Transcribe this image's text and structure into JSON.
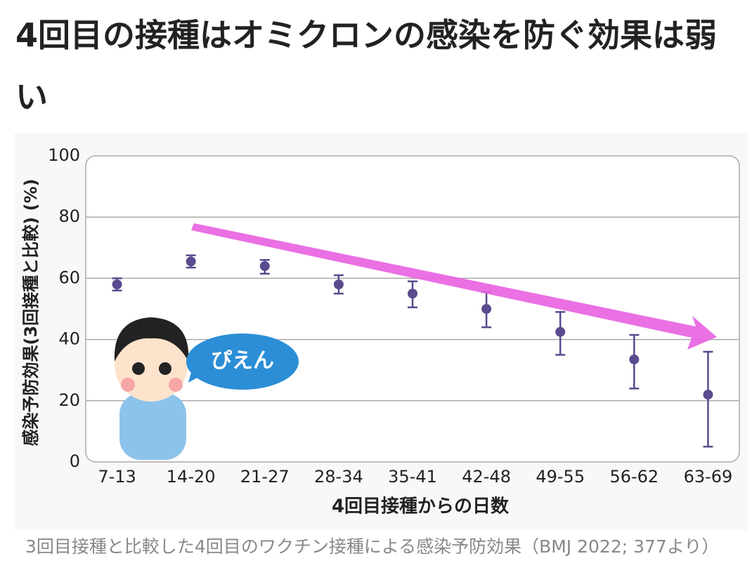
{
  "header": {
    "title": "4回目の接種はオミクロンの感染を防ぐ効果は弱い"
  },
  "chart_data": {
    "type": "errorbar",
    "y_label": "感染予防効果(3回接種と比較) (%)",
    "x_label": "4回目接種からの日数",
    "categories": [
      "7-13",
      "14-20",
      "21-27",
      "28-34",
      "35-41",
      "42-48",
      "49-55",
      "56-62",
      "63-69"
    ],
    "values": [
      58,
      65.5,
      64,
      58,
      55,
      50,
      42.5,
      33.5,
      22
    ],
    "lower": [
      56,
      63.5,
      61.5,
      55,
      50.5,
      44,
      35,
      24,
      5
    ],
    "upper": [
      60,
      67.5,
      66,
      61,
      59,
      55.5,
      49,
      41.5,
      36
    ],
    "color": "#5a4a8e",
    "ylim": [
      0,
      100
    ],
    "yticks": [
      0,
      20,
      40,
      60,
      80,
      100
    ],
    "grid": true,
    "annotation": "ぴえん"
  },
  "caption": "3回目接種と比較した4回目のワクチン接種による感染予防効果（BMJ 2022; 377より）"
}
